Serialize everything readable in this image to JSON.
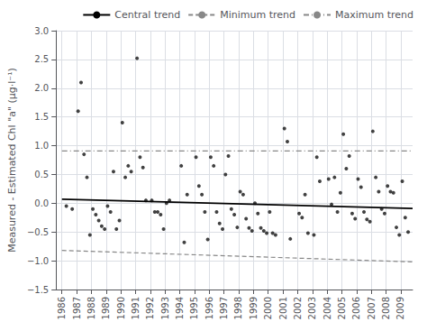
{
  "chart_data": {
    "type": "scatter",
    "ylabel": "Measured - Estimated Chl \"a\" (μg·l⁻¹)",
    "xlim": [
      1985.6,
      2009.8
    ],
    "xticks": [
      1986,
      1987,
      1988,
      1989,
      1990,
      1991,
      1992,
      1993,
      1994,
      1995,
      1996,
      1997,
      1998,
      1999,
      2000,
      2001,
      2002,
      2003,
      2004,
      2005,
      2006,
      2007,
      2008,
      2009
    ],
    "ylim": [
      -1.5,
      3.0
    ],
    "yticks": [
      {
        "value": -1.5,
        "label": "−1.5"
      },
      {
        "value": -1.0,
        "label": "−1.0"
      },
      {
        "value": -0.5,
        "label": "−0.5"
      },
      {
        "value": 0.0,
        "label": "0.0"
      },
      {
        "value": 0.5,
        "label": "0.5"
      },
      {
        "value": 1.0,
        "label": "1.0"
      },
      {
        "value": 1.5,
        "label": "1.5"
      },
      {
        "value": 2.0,
        "label": "2.0"
      },
      {
        "value": 2.5,
        "label": "2.5"
      },
      {
        "value": 3.0,
        "label": "3.0"
      }
    ],
    "grid": true,
    "legend": "upper right",
    "series": [
      {
        "type": "scatter",
        "color": "#111111",
        "x": [
          1986.3,
          1986.7,
          1987.1,
          1987.3,
          1987.5,
          1987.7,
          1987.9,
          1988.1,
          1988.3,
          1988.5,
          1988.7,
          1988.9,
          1989.1,
          1989.3,
          1989.5,
          1989.7,
          1989.9,
          1990.1,
          1990.3,
          1990.5,
          1990.7,
          1991.1,
          1991.3,
          1991.5,
          1991.7,
          1992.1,
          1992.3,
          1992.5,
          1992.7,
          1992.9,
          1993.1,
          1993.3,
          1994.1,
          1994.3,
          1994.5,
          1995.1,
          1995.3,
          1995.5,
          1995.7,
          1995.9,
          1996.1,
          1996.3,
          1996.5,
          1996.7,
          1996.9,
          1997.1,
          1997.3,
          1997.5,
          1997.7,
          1997.9,
          1998.1,
          1998.3,
          1998.5,
          1998.7,
          1998.9,
          1999.1,
          1999.3,
          1999.5,
          1999.7,
          1999.9,
          2000.1,
          2000.3,
          2000.5,
          2001.1,
          2001.3,
          2001.5,
          2002.1,
          2002.3,
          2002.5,
          2002.7,
          2003.1,
          2003.3,
          2003.5,
          2004.1,
          2004.3,
          2004.5,
          2004.7,
          2004.9,
          2005.1,
          2005.3,
          2005.5,
          2005.7,
          2005.9,
          2006.1,
          2006.3,
          2006.5,
          2006.7,
          2006.9,
          2007.1,
          2007.3,
          2007.5,
          2007.7,
          2007.9,
          2008.1,
          2008.3,
          2008.5,
          2008.7,
          2008.9,
          2009.1,
          2009.3,
          2009.5
        ],
        "values": [
          -0.05,
          -0.1,
          1.6,
          2.1,
          0.85,
          0.45,
          -0.55,
          -0.1,
          -0.2,
          -0.3,
          -0.4,
          -0.45,
          -0.05,
          -0.15,
          0.55,
          -0.45,
          -0.3,
          1.4,
          0.45,
          0.65,
          0.55,
          2.52,
          0.8,
          0.62,
          0.05,
          0.05,
          -0.15,
          -0.15,
          -0.2,
          -0.45,
          -0.0,
          0.05,
          0.65,
          -0.68,
          0.15,
          0.8,
          0.3,
          0.15,
          -0.15,
          -0.63,
          0.8,
          0.65,
          -0.15,
          -0.35,
          -0.45,
          0.5,
          0.82,
          -0.1,
          -0.2,
          -0.42,
          0.2,
          0.15,
          -0.27,
          -0.43,
          -0.48,
          -0.0,
          -0.18,
          -0.43,
          -0.48,
          -0.52,
          -0.15,
          -0.52,
          -0.55,
          1.3,
          1.07,
          -0.62,
          -0.18,
          -0.25,
          0.15,
          -0.52,
          -0.55,
          0.8,
          0.38,
          0.42,
          -0.02,
          0.45,
          -0.15,
          0.18,
          1.2,
          0.6,
          0.82,
          -0.18,
          -0.27,
          0.42,
          0.28,
          -0.15,
          -0.28,
          -0.32,
          1.25,
          0.45,
          0.2,
          -0.1,
          -0.18,
          0.3,
          0.2,
          0.18,
          -0.42,
          -0.55,
          0.38,
          -0.25,
          -0.5
        ]
      },
      {
        "name": "Central trend",
        "type": "line",
        "color": "#000000",
        "line_style": "solid",
        "x": [
          1986,
          2009.8
        ],
        "values": [
          0.07,
          -0.09
        ]
      },
      {
        "name": "Minimum trend",
        "type": "line",
        "color": "#888888",
        "line_style": "dashed",
        "x": [
          1986,
          2009.8
        ],
        "values": [
          -0.82,
          -1.02
        ]
      },
      {
        "name": "Maximum trend",
        "type": "line",
        "color": "#888888",
        "line_style": "dashdot",
        "x": [
          1986,
          2009.8
        ],
        "values": [
          0.91,
          0.91
        ]
      }
    ]
  }
}
